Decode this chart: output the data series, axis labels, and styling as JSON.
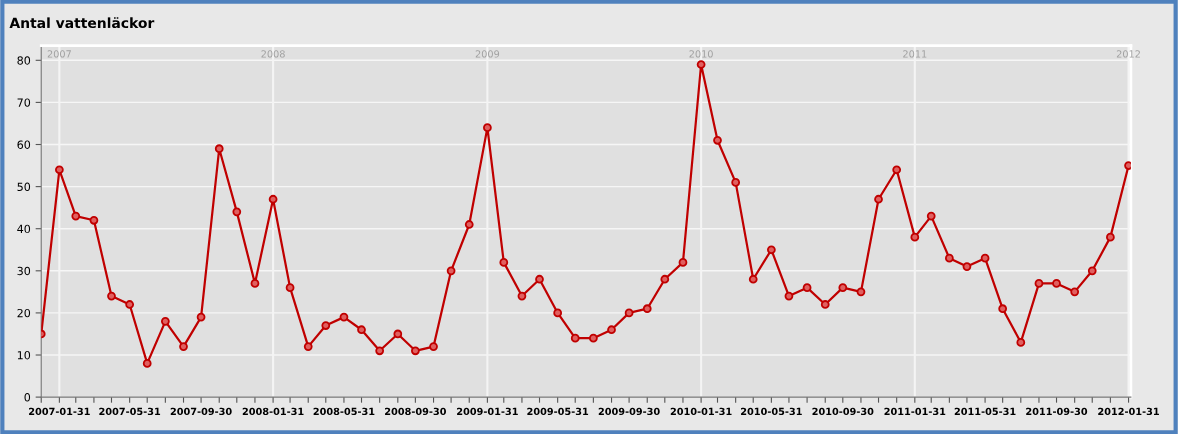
{
  "chart_data": {
    "type": "line",
    "title": "Antal vattenläckor",
    "x": [
      "2006-12-31",
      "2007-01-31",
      "2007-02-28",
      "2007-03-31",
      "2007-04-30",
      "2007-05-31",
      "2007-06-30",
      "2007-07-31",
      "2007-08-31",
      "2007-09-30",
      "2007-10-31",
      "2007-11-30",
      "2007-12-31",
      "2008-01-31",
      "2008-02-29",
      "2008-03-31",
      "2008-04-30",
      "2008-05-31",
      "2008-06-30",
      "2008-07-31",
      "2008-08-31",
      "2008-09-30",
      "2008-10-31",
      "2008-11-30",
      "2008-12-31",
      "2009-01-31",
      "2009-02-28",
      "2009-03-31",
      "2009-04-30",
      "2009-05-31",
      "2009-06-30",
      "2009-07-31",
      "2009-08-31",
      "2009-09-30",
      "2009-10-31",
      "2009-11-30",
      "2009-12-31",
      "2010-01-31",
      "2010-02-28",
      "2010-03-31",
      "2010-04-30",
      "2010-05-31",
      "2010-06-30",
      "2010-07-31",
      "2010-08-31",
      "2010-09-30",
      "2010-10-31",
      "2010-11-30",
      "2010-12-31",
      "2011-01-31",
      "2011-02-28",
      "2011-03-31",
      "2011-04-30",
      "2011-05-31",
      "2011-06-30",
      "2011-07-31",
      "2011-08-31",
      "2011-09-30",
      "2011-10-31",
      "2011-11-30",
      "2011-12-31",
      "2012-01-31"
    ],
    "series": [
      {
        "color": "#c00000",
        "values": [
          15,
          54,
          43,
          42,
          24,
          22,
          8,
          18,
          12,
          19,
          59,
          44,
          27,
          47,
          26,
          12,
          17,
          19,
          16,
          11,
          15,
          11,
          12,
          30,
          41,
          64,
          32,
          24,
          28,
          20,
          14,
          14,
          16,
          20,
          21,
          28,
          32,
          79,
          61,
          51,
          28,
          35,
          24,
          26,
          22,
          26,
          25,
          47,
          54,
          38,
          43,
          33,
          31,
          33,
          21,
          13,
          27,
          27,
          25,
          30,
          38,
          55
        ]
      }
    ],
    "xlim": [
      "2006-12-31",
      "2012-02-04"
    ],
    "ylim": [
      0,
      83.5
    ],
    "yticks": [
      0,
      10,
      20,
      30,
      40,
      50,
      60,
      70,
      80
    ],
    "xticks": [
      {
        "value": "2006-12-31",
        "label": null
      },
      "2007-01-31",
      {
        "value": "2007-02-28",
        "label": null
      },
      {
        "value": "2007-03-31",
        "label": null
      },
      {
        "value": "2007-04-30",
        "label": null
      },
      "2007-05-31",
      {
        "value": "2007-06-30",
        "label": null
      },
      {
        "value": "2007-07-31",
        "label": null
      },
      {
        "value": "2007-08-31",
        "label": null
      },
      "2007-09-30",
      {
        "value": "2007-10-31",
        "label": null
      },
      {
        "value": "2007-11-30",
        "label": null
      },
      {
        "value": "2007-12-31",
        "label": null
      },
      "2008-01-31",
      {
        "value": "2008-02-29",
        "label": null
      },
      {
        "value": "2008-03-31",
        "label": null
      },
      {
        "value": "2008-04-30",
        "label": null
      },
      "2008-05-31",
      {
        "value": "2008-06-30",
        "label": null
      },
      {
        "value": "2008-07-31",
        "label": null
      },
      {
        "value": "2008-08-31",
        "label": null
      },
      "2008-09-30",
      {
        "value": "2008-10-31",
        "label": null
      },
      {
        "value": "2008-11-30",
        "label": null
      },
      {
        "value": "2008-12-31",
        "label": null
      },
      "2009-01-31",
      {
        "value": "2009-02-28",
        "label": null
      },
      {
        "value": "2009-03-31",
        "label": null
      },
      {
        "value": "2009-04-30",
        "label": null
      },
      "2009-05-31",
      {
        "value": "2009-06-30",
        "label": null
      },
      {
        "value": "2009-07-31",
        "label": null
      },
      {
        "value": "2009-08-31",
        "label": null
      },
      "2009-09-30",
      {
        "value": "2009-10-31",
        "label": null
      },
      {
        "value": "2009-11-30",
        "label": null
      },
      {
        "value": "2009-12-31",
        "label": null
      },
      "2010-01-31",
      {
        "value": "2010-02-28",
        "label": null
      },
      {
        "value": "2010-03-31",
        "label": null
      },
      {
        "value": "2010-04-30",
        "label": null
      },
      "2010-05-31",
      {
        "value": "2010-06-30",
        "label": null
      },
      {
        "value": "2010-07-31",
        "label": null
      },
      {
        "value": "2010-08-31",
        "label": null
      },
      "2010-09-30",
      {
        "value": "2010-10-31",
        "label": null
      },
      {
        "value": "2010-11-30",
        "label": null
      },
      {
        "value": "2010-12-31",
        "label": null
      },
      "2011-01-31",
      {
        "value": "2011-02-28",
        "label": null
      },
      {
        "value": "2011-03-31",
        "label": null
      },
      {
        "value": "2011-04-30",
        "label": null
      },
      "2011-05-31",
      {
        "value": "2011-06-30",
        "label": null
      },
      {
        "value": "2011-07-31",
        "label": null
      },
      {
        "value": "2011-08-31",
        "label": null
      },
      "2011-09-30",
      {
        "value": "2011-10-31",
        "label": null
      },
      {
        "value": "2011-11-30",
        "label": null
      },
      {
        "value": "2011-12-31",
        "label": null
      },
      "2012-01-31"
    ],
    "x2lim": [
      "2006-12-31",
      "2012-02-04"
    ],
    "x2ticks": [
      {
        "value": "2007-01-31",
        "label": "2007"
      },
      {
        "value": "2008-01-31",
        "label": "2008"
      },
      {
        "value": "2009-01-31",
        "label": "2009"
      },
      {
        "value": "2010-01-31",
        "label": "2010"
      },
      {
        "value": "2011-01-31",
        "label": "2011"
      },
      {
        "value": "2012-01-31",
        "label": "2012"
      }
    ],
    "ref_lines": [
      {
        "axis": "x",
        "value": "2007-01-31",
        "color": "#f4f4f4"
      },
      {
        "axis": "x",
        "value": "2008-01-31",
        "color": "#f4f4f4"
      },
      {
        "axis": "x",
        "value": "2009-01-31",
        "color": "#f4f4f4"
      },
      {
        "axis": "x",
        "value": "2010-01-31",
        "color": "#f4f4f4"
      },
      {
        "axis": "x",
        "value": "2011-01-31",
        "color": "#f4f4f4"
      },
      {
        "axis": "x",
        "value": "2012-01-31",
        "color": "#f4f4f4"
      }
    ],
    "grid": "y",
    "marker": "circle",
    "line_style": "solid"
  }
}
